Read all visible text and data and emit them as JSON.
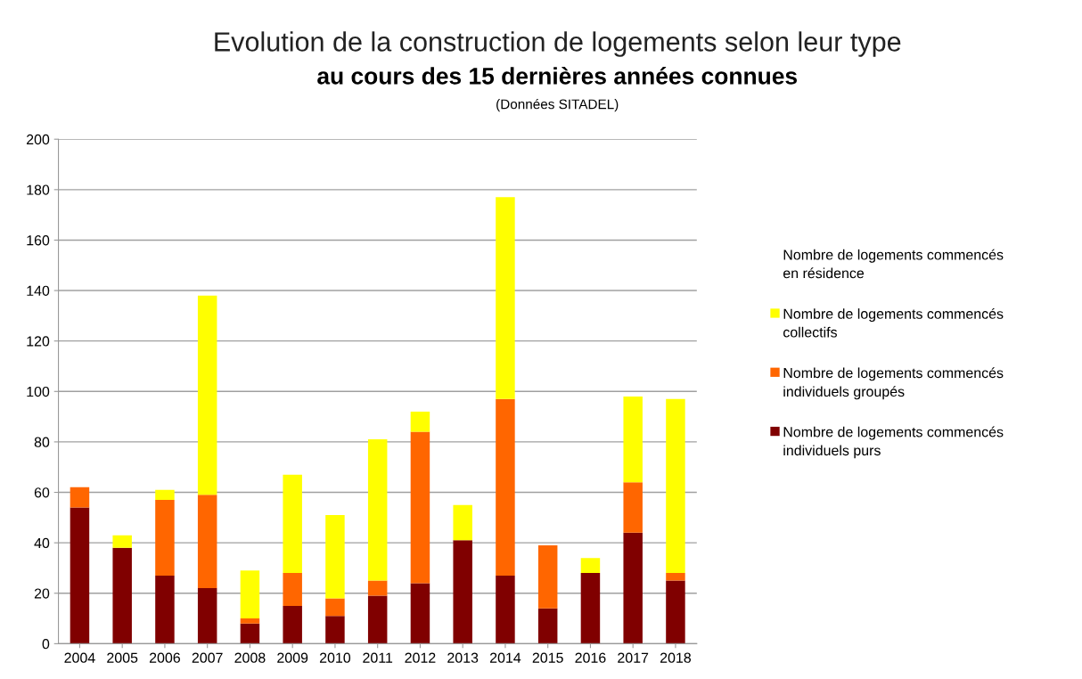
{
  "chart_data": {
    "type": "bar",
    "title": "Evolution de la construction de logements selon leur type",
    "subtitle": "au cours des 15 dernières années connues",
    "annotations": [
      "(Données SITADEL)"
    ],
    "categories": [
      "2004",
      "2005",
      "2006",
      "2007",
      "2008",
      "2009",
      "2010",
      "2011",
      "2012",
      "2013",
      "2014",
      "2015",
      "2016",
      "2017",
      "2018"
    ],
    "stacked": true,
    "series": [
      {
        "name": "Nombre de logements commencés individuels purs",
        "color": "#800000",
        "values": [
          54,
          38,
          27,
          22,
          8,
          15,
          11,
          19,
          24,
          41,
          27,
          14,
          28,
          44,
          25
        ]
      },
      {
        "name": "Nombre de logements commencés individuels groupés",
        "color": "#ff6600",
        "values": [
          8,
          0,
          30,
          37,
          2,
          13,
          7,
          6,
          60,
          0,
          70,
          25,
          0,
          20,
          3
        ]
      },
      {
        "name": "Nombre de logements commencés collectifs",
        "color": "#ffff00",
        "values": [
          0,
          5,
          4,
          79,
          19,
          39,
          33,
          56,
          8,
          14,
          80,
          0,
          6,
          34,
          69
        ]
      },
      {
        "name": "Nombre de logements commencés en résidence",
        "values": [
          0,
          0,
          0,
          0,
          0,
          0,
          0,
          0,
          0,
          0,
          0,
          0,
          0,
          0,
          0
        ]
      }
    ],
    "ylim": [
      0,
      200
    ],
    "yticks": [
      0,
      20,
      40,
      60,
      80,
      100,
      120,
      140,
      160,
      180,
      200
    ],
    "grid": "y",
    "legend": "right"
  }
}
